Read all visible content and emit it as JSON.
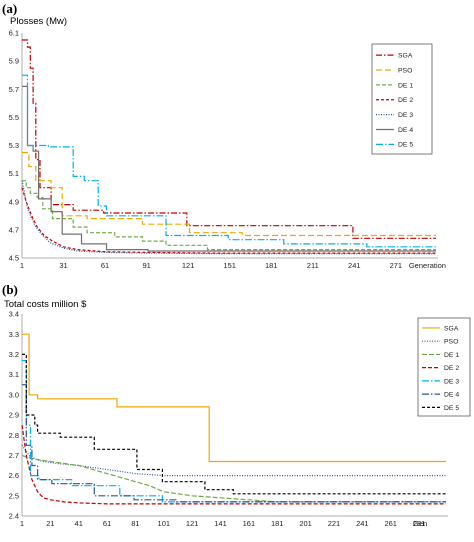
{
  "chart_data": [
    {
      "panel": "(a)",
      "type": "line",
      "ylabel": "Plosses (Mw)",
      "xlabel": "Generation",
      "xlim": [
        1,
        300
      ],
      "ylim": [
        4.5,
        6.1
      ],
      "xticks": [
        1,
        31,
        61,
        91,
        121,
        151,
        181,
        211,
        241,
        271
      ],
      "yticks": [
        4.5,
        4.7,
        4.9,
        5.1,
        5.3,
        5.5,
        5.7,
        5.9,
        6.1
      ],
      "grid": false,
      "legend_position": "top-right",
      "series": [
        {
          "name": "SGA",
          "color": "#c00000",
          "dash": "6,2,1.5,2",
          "x": [
            1,
            5,
            5,
            7,
            7,
            9,
            9,
            11,
            11,
            14,
            14,
            22,
            22,
            38,
            38,
            60,
            60,
            120,
            120,
            240,
            240,
            300
          ],
          "y": [
            6.05,
            6.05,
            6.0,
            6.0,
            5.85,
            5.85,
            5.6,
            5.6,
            5.2,
            5.2,
            5.0,
            5.0,
            4.88,
            4.88,
            4.84,
            4.84,
            4.82,
            4.82,
            4.73,
            4.73,
            4.64,
            4.64
          ]
        },
        {
          "name": "PSO",
          "color": "#f0a800",
          "dash": "6,3",
          "x": [
            1,
            6,
            6,
            11,
            11,
            22,
            22,
            30,
            30,
            48,
            48,
            88,
            88,
            122,
            122,
            160,
            160,
            300
          ],
          "y": [
            5.25,
            5.25,
            5.15,
            5.15,
            5.05,
            5.05,
            5.0,
            5.0,
            4.8,
            4.8,
            4.78,
            4.78,
            4.74,
            4.74,
            4.68,
            4.68,
            4.66,
            4.66
          ]
        },
        {
          "name": "DE 1",
          "color": "#6fac46",
          "dash": "4,2",
          "x": [
            1,
            4,
            4,
            7,
            7,
            12,
            12,
            16,
            16,
            23,
            23,
            38,
            38,
            48,
            48,
            68,
            68,
            88,
            88,
            105,
            105,
            135,
            135,
            300
          ],
          "y": [
            5.05,
            5.05,
            5.0,
            5.0,
            4.96,
            4.96,
            4.93,
            4.93,
            4.85,
            4.85,
            4.78,
            4.78,
            4.72,
            4.72,
            4.68,
            4.68,
            4.65,
            4.65,
            4.62,
            4.62,
            4.59,
            4.59,
            4.56,
            4.56
          ]
        },
        {
          "name": "DE 2",
          "color": "#c00000",
          "dash": "3,2",
          "x": [
            1,
            4,
            8,
            12,
            17,
            23,
            31,
            41,
            61,
            91,
            140,
            300
          ],
          "y": [
            5.0,
            4.9,
            4.8,
            4.72,
            4.66,
            4.62,
            4.58,
            4.56,
            4.545,
            4.54,
            4.535,
            4.535
          ]
        },
        {
          "name": "DE 3",
          "color": "#2f5597",
          "dash": "1,1.5",
          "x": [
            1,
            3,
            5,
            8,
            11,
            16,
            21,
            31,
            41,
            61,
            91,
            151,
            300
          ],
          "y": [
            5.05,
            4.95,
            4.85,
            4.78,
            4.72,
            4.66,
            4.61,
            4.57,
            4.55,
            4.54,
            4.535,
            4.53,
            4.53
          ]
        },
        {
          "name": "DE 4",
          "color": "#767171",
          "dash": "",
          "x": [
            1,
            5,
            5,
            9,
            9,
            13,
            13,
            22,
            22,
            30,
            30,
            44,
            44,
            62,
            62,
            92,
            92,
            300
          ],
          "y": [
            5.72,
            5.72,
            5.3,
            5.3,
            5.26,
            5.26,
            4.92,
            4.92,
            4.83,
            4.83,
            4.67,
            4.67,
            4.6,
            4.6,
            4.56,
            4.56,
            4.55,
            4.55
          ]
        },
        {
          "name": "DE 5",
          "color": "#00b0f0",
          "dash": "7,2,1.5,2",
          "x": [
            1,
            5,
            5,
            20,
            20,
            38,
            38,
            46,
            46,
            56,
            56,
            62,
            62,
            105,
            105,
            150,
            150,
            190,
            190,
            250,
            250,
            300
          ],
          "y": [
            5.8,
            5.8,
            5.3,
            5.3,
            5.29,
            5.29,
            5.08,
            5.08,
            5.05,
            5.05,
            4.87,
            4.87,
            4.8,
            4.8,
            4.66,
            4.66,
            4.63,
            4.63,
            4.6,
            4.6,
            4.58,
            4.58
          ]
        }
      ]
    },
    {
      "panel": "(b)",
      "type": "line",
      "ylabel": "Total costs million $",
      "xlabel": "Gen",
      "xlim": [
        1,
        300
      ],
      "ylim": [
        2.4,
        3.4
      ],
      "xticks": [
        1,
        21,
        41,
        61,
        81,
        101,
        121,
        141,
        161,
        181,
        201,
        221,
        241,
        261,
        281
      ],
      "yticks": [
        2.4,
        2.5,
        2.6,
        2.7,
        2.8,
        2.9,
        3.0,
        3.1,
        3.2,
        3.3,
        3.4
      ],
      "grid": false,
      "legend_position": "top-right",
      "series": [
        {
          "name": "SGA",
          "color": "#f0a800",
          "dash": "",
          "x": [
            1,
            6,
            6,
            12,
            12,
            68,
            68,
            133,
            133,
            300
          ],
          "y": [
            3.3,
            3.3,
            3.0,
            3.0,
            2.98,
            2.98,
            2.94,
            2.94,
            2.67,
            2.67
          ]
        },
        {
          "name": "PSO",
          "color": "#2f5597",
          "dash": "1,1.5",
          "x": [
            1,
            6,
            11,
            16,
            26,
            41,
            61,
            81,
            101,
            141,
            300
          ],
          "y": [
            2.75,
            2.7,
            2.68,
            2.67,
            2.66,
            2.65,
            2.63,
            2.61,
            2.6,
            2.6,
            2.6
          ]
        },
        {
          "name": "DE 1",
          "color": "#6fac46",
          "dash": "5,2",
          "x": [
            1,
            5,
            11,
            21,
            31,
            41,
            51,
            61,
            71,
            81,
            91,
            101,
            121,
            141,
            161,
            181,
            201,
            241,
            300
          ],
          "y": [
            2.7,
            2.69,
            2.68,
            2.67,
            2.66,
            2.65,
            2.63,
            2.61,
            2.59,
            2.57,
            2.55,
            2.52,
            2.5,
            2.49,
            2.48,
            2.47,
            2.47,
            2.47,
            2.47
          ]
        },
        {
          "name": "DE 2",
          "color": "#c00000",
          "dash": "4,2",
          "x": [
            1,
            4,
            8,
            12,
            16,
            21,
            31,
            41,
            61,
            101,
            300
          ],
          "y": [
            2.85,
            2.7,
            2.58,
            2.52,
            2.49,
            2.48,
            2.47,
            2.465,
            2.46,
            2.46,
            2.46
          ]
        },
        {
          "name": "DE 3",
          "color": "#00b0f0",
          "dash": "7,2,1.5,2",
          "x": [
            1,
            4,
            4,
            7,
            7,
            13,
            13,
            36,
            36,
            70,
            70,
            100,
            100,
            300
          ],
          "y": [
            3.17,
            3.17,
            2.85,
            2.85,
            2.6,
            2.6,
            2.58,
            2.58,
            2.55,
            2.55,
            2.5,
            2.5,
            2.47,
            2.47
          ]
        },
        {
          "name": "DE 4",
          "color": "#2f5597",
          "dash": "7,2,1.5,2",
          "x": [
            1,
            4,
            4,
            8,
            8,
            12,
            12,
            22,
            22,
            52,
            52,
            80,
            80,
            110,
            110,
            300
          ],
          "y": [
            3.05,
            3.05,
            2.75,
            2.75,
            2.65,
            2.65,
            2.58,
            2.58,
            2.56,
            2.56,
            2.5,
            2.5,
            2.48,
            2.48,
            2.47,
            2.47
          ]
        },
        {
          "name": "DE 5",
          "color": "#000000",
          "dash": "3,2",
          "x": [
            1,
            4,
            4,
            10,
            10,
            12,
            12,
            28,
            28,
            52,
            52,
            82,
            82,
            100,
            100,
            130,
            130,
            150,
            150,
            300
          ],
          "y": [
            3.2,
            3.2,
            2.9,
            2.9,
            2.85,
            2.85,
            2.81,
            2.81,
            2.79,
            2.79,
            2.73,
            2.73,
            2.63,
            2.63,
            2.57,
            2.57,
            2.53,
            2.53,
            2.51,
            2.51
          ]
        }
      ]
    }
  ]
}
